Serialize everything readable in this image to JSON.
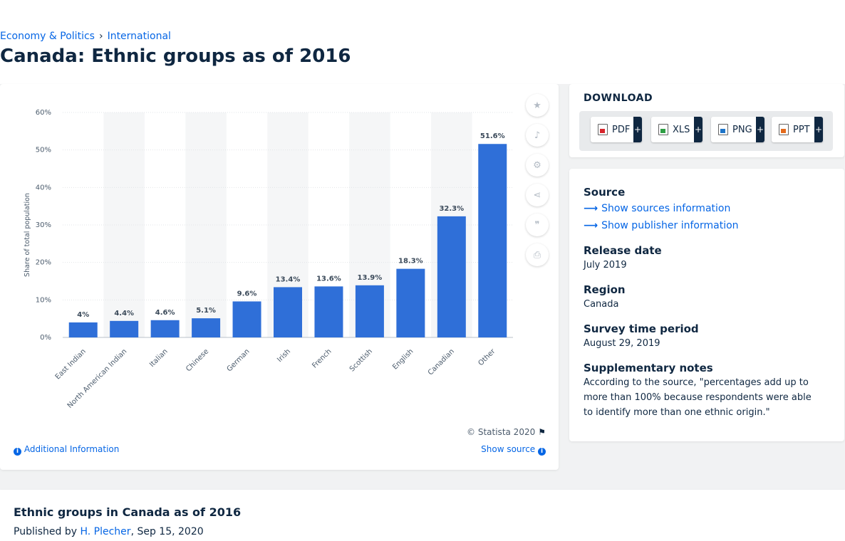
{
  "breadcrumb": {
    "items": [
      "Economy & Politics",
      "International"
    ],
    "separator": "›"
  },
  "page_title": "Canada: Ethnic groups as of 2016",
  "chart_tools": [
    "star-icon",
    "bell-icon",
    "gear-icon",
    "share-icon",
    "quote-icon",
    "print-icon"
  ],
  "chart_footer": {
    "copyright": "© Statista 2020",
    "additional_info": "Additional Information",
    "show_source": "Show source"
  },
  "download": {
    "title": "DOWNLOAD",
    "buttons": [
      {
        "label": "PDF",
        "icon": "pdf-file-icon"
      },
      {
        "label": "XLS",
        "icon": "xls-file-icon"
      },
      {
        "label": "PNG",
        "icon": "png-file-icon"
      },
      {
        "label": "PPT",
        "icon": "ppt-file-icon"
      }
    ],
    "plus": "+"
  },
  "source_panel": {
    "source_heading": "Source",
    "show_sources": "Show sources information",
    "show_publisher": "Show publisher information",
    "release_heading": "Release date",
    "release_value": "July 2019",
    "region_heading": "Region",
    "region_value": "Canada",
    "survey_heading": "Survey time period",
    "survey_value": "August 29, 2019",
    "notes_heading": "Supplementary notes",
    "notes_value": "According to the source, \"percentages add up to more than 100% because respondents were able to identify more than one ethnic origin.\""
  },
  "bottom": {
    "title": "Ethnic groups in Canada as of 2016",
    "published_by": "Published by",
    "author": "H. Plecher",
    "date": ", Sep 15, 2020"
  },
  "colors": {
    "bar": "#2f6fd8",
    "band": "#f5f6f7",
    "accent": "#0666e5",
    "text": "#0f2741"
  },
  "chart_data": {
    "type": "bar",
    "categories": [
      "East Indian",
      "North American Indian",
      "Italian",
      "Chinese",
      "German",
      "Irish",
      "French",
      "Scottish",
      "English",
      "Canadian",
      "Other"
    ],
    "values": [
      4,
      4.4,
      4.6,
      5.1,
      9.6,
      13.4,
      13.6,
      13.9,
      18.3,
      32.3,
      51.6
    ],
    "data_labels": [
      "4%",
      "4.4%",
      "4.6%",
      "5.1%",
      "9.6%",
      "13.4%",
      "13.6%",
      "13.9%",
      "18.3%",
      "32.3%",
      "51.6%"
    ],
    "yticks": [
      0,
      10,
      20,
      30,
      40,
      50,
      60
    ],
    "ytick_labels": [
      "0%",
      "10%",
      "20%",
      "30%",
      "40%",
      "50%",
      "60%"
    ],
    "ylabel": "Share of total population",
    "xlabel": "",
    "ylim": [
      0,
      60
    ],
    "grid": true,
    "legend": "none"
  }
}
